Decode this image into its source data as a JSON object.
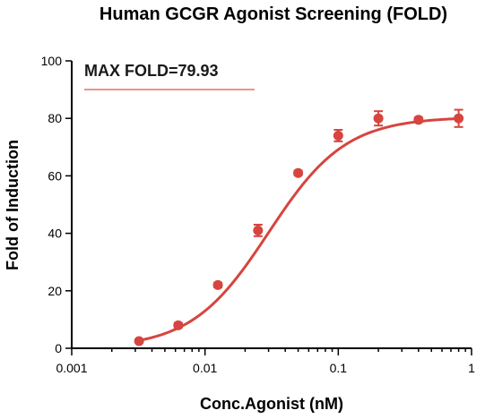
{
  "chart_data": {
    "type": "scatter",
    "title": "Human GCGR Agonist Screening (FOLD)",
    "xlabel": "Conc.Agonist (nM)",
    "ylabel": "Fold of Induction",
    "xscale": "log",
    "xlim": [
      0.001,
      1
    ],
    "ylim": [
      0,
      100
    ],
    "xticks": [
      0.001,
      0.01,
      0.1,
      1
    ],
    "xtick_labels": [
      "0.001",
      "0.01",
      "0.1",
      "1"
    ],
    "yticks": [
      0,
      20,
      40,
      60,
      80,
      100
    ],
    "ytick_labels": [
      "0",
      "20",
      "40",
      "60",
      "80",
      "100"
    ],
    "annotation": "MAX FOLD=79.93",
    "series": [
      {
        "x": [
          0.0032,
          0.0063,
          0.0125,
          0.025,
          0.05,
          0.1,
          0.2,
          0.4,
          0.8
        ],
        "y": [
          2.5,
          8,
          22,
          41,
          61,
          74,
          80,
          79.5,
          80
        ],
        "err": [
          0.5,
          0.8,
          0.8,
          2,
          0.8,
          2,
          2.5,
          0.8,
          3
        ],
        "fit": {
          "bottom": 0,
          "top": 80.5,
          "ec50": 0.03,
          "hill": 1.5
        }
      }
    ],
    "colors": {
      "series": "#d6453f",
      "axis": "#000000"
    },
    "grid": false
  }
}
